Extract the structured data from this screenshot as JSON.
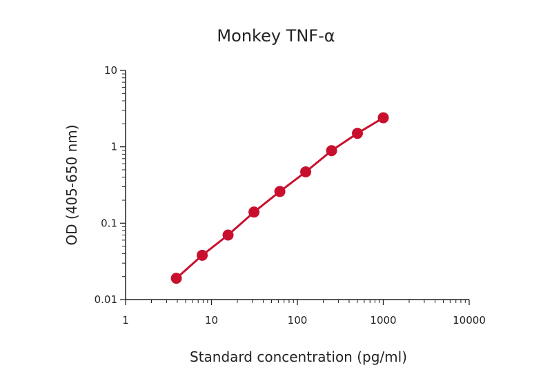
{
  "chart_data": {
    "type": "scatter",
    "title": "Monkey TNF-α",
    "xlabel": "Standard concentration (pg/ml)",
    "ylabel": "OD (405-650 nm)",
    "xscale": "log",
    "yscale": "log",
    "xlim": [
      1,
      10000
    ],
    "ylim": [
      0.01,
      10
    ],
    "x_ticks": [
      1,
      10,
      100,
      1000,
      10000
    ],
    "x_tick_labels": [
      "1",
      "10",
      "100",
      "1000",
      "10000"
    ],
    "y_ticks": [
      0.01,
      0.1,
      1,
      10
    ],
    "y_tick_labels": [
      "0.01",
      "0.1",
      "1",
      "10"
    ],
    "grid": false,
    "legend": "none",
    "series": [
      {
        "color": "#c8102e",
        "x": [
          3.9,
          7.8,
          15.6,
          31.25,
          62.5,
          125,
          250,
          500,
          1000
        ],
        "y": [
          0.019,
          0.038,
          0.07,
          0.14,
          0.26,
          0.47,
          0.89,
          1.5,
          2.4
        ]
      }
    ]
  }
}
